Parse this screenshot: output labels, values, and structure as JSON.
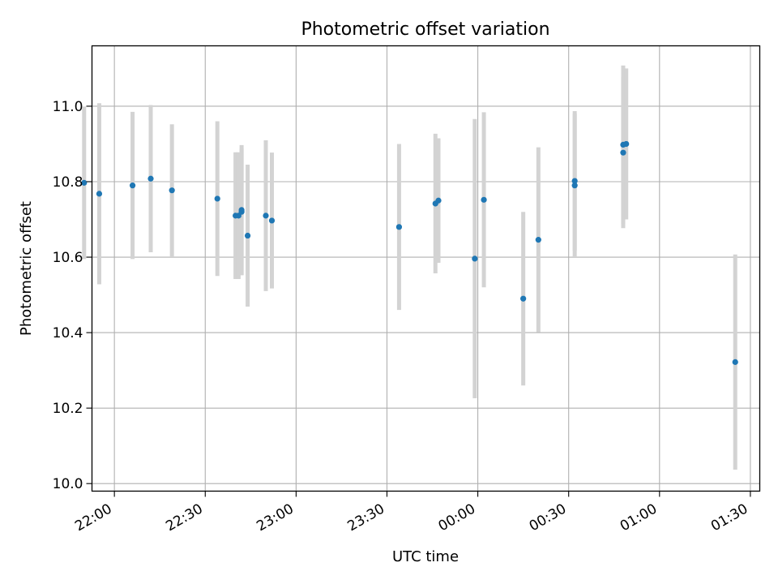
{
  "chart_data": {
    "type": "scatter",
    "title": "Photometric offset variation",
    "xlabel": "UTC time",
    "ylabel": "Photometric offset",
    "x_ticks": [
      "22:00",
      "22:30",
      "23:00",
      "23:30",
      "00:00",
      "00:30",
      "01:00",
      "01:30"
    ],
    "y_ticks": [
      "10.0",
      "10.2",
      "10.4",
      "10.6",
      "10.8",
      "11.0"
    ],
    "xlim": [
      "21:53",
      "01:32"
    ],
    "ylim": [
      9.98,
      11.16
    ],
    "grid": true,
    "point_color": "#1f77b4",
    "errorbar_color": "#d3d3d3",
    "points": [
      {
        "x": "21:50",
        "y": 10.797,
        "err": 0.202
      },
      {
        "x": "21:55",
        "y": 10.768,
        "err": 0.24
      },
      {
        "x": "22:06",
        "y": 10.79,
        "err": 0.195
      },
      {
        "x": "22:12",
        "y": 10.808,
        "err": 0.195
      },
      {
        "x": "22:19",
        "y": 10.777,
        "err": 0.175
      },
      {
        "x": "22:34",
        "y": 10.755,
        "err": 0.205
      },
      {
        "x": "22:40",
        "y": 10.71,
        "err": 0.168
      },
      {
        "x": "22:41",
        "y": 10.71,
        "err": 0.168
      },
      {
        "x": "22:42",
        "y": 10.72,
        "err": 0.168
      },
      {
        "x": "22:42",
        "y": 10.725,
        "err": 0.172
      },
      {
        "x": "22:44",
        "y": 10.657,
        "err": 0.188
      },
      {
        "x": "22:50",
        "y": 10.71,
        "err": 0.2
      },
      {
        "x": "22:52",
        "y": 10.697,
        "err": 0.18
      },
      {
        "x": "23:34",
        "y": 10.68,
        "err": 0.22
      },
      {
        "x": "23:46",
        "y": 10.742,
        "err": 0.185
      },
      {
        "x": "23:47",
        "y": 10.75,
        "err": 0.165
      },
      {
        "x": "23:59",
        "y": 10.596,
        "err": 0.37
      },
      {
        "x": "00:02",
        "y": 10.752,
        "err": 0.232
      },
      {
        "x": "00:15",
        "y": 10.49,
        "err": 0.23
      },
      {
        "x": "00:20",
        "y": 10.646,
        "err": 0.245
      },
      {
        "x": "00:32",
        "y": 10.79,
        "err": 0.19
      },
      {
        "x": "00:32",
        "y": 10.802,
        "err": 0.185
      },
      {
        "x": "00:48",
        "y": 10.877,
        "err": 0.2
      },
      {
        "x": "00:48",
        "y": 10.898,
        "err": 0.21
      },
      {
        "x": "00:49",
        "y": 10.9,
        "err": 0.2
      },
      {
        "x": "01:25",
        "y": 10.322,
        "err": 0.285
      }
    ]
  }
}
